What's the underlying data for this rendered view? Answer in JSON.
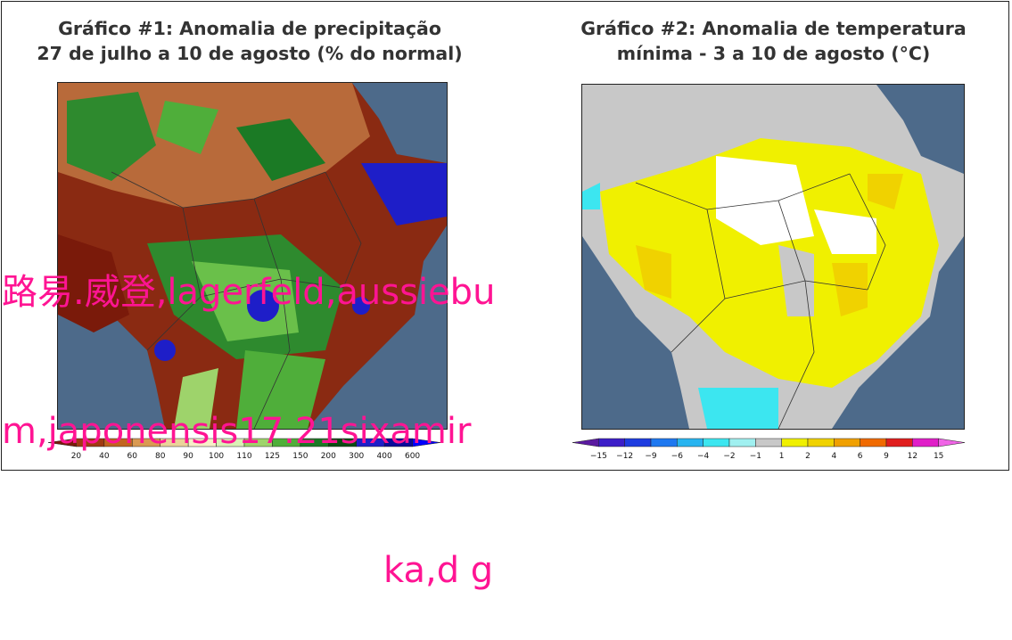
{
  "panels": [
    {
      "title_line1": "Gráfico #1: Anomalia de precipitação",
      "title_line2": "27 de julho a 10 de agosto (% do normal)",
      "colorbar": {
        "ticks": [
          "20",
          "40",
          "60",
          "80",
          "90",
          "100",
          "110",
          "125",
          "150",
          "200",
          "300",
          "400",
          "600"
        ],
        "colors": [
          "#7a1a0a",
          "#a03a12",
          "#c1641f",
          "#d99a52",
          "#ead29a",
          "#f6efc8",
          "#d9f0b6",
          "#9ed36b",
          "#4fae3a",
          "#1b7a25",
          "#0a4d12",
          "#1e1ec8",
          "#0a0a9a",
          "#0000ff"
        ]
      }
    },
    {
      "title_line1": "Gráfico #2: Anomalia de temperatura",
      "title_line2": "mínima - 3 a 10 de agosto (°C)",
      "colorbar": {
        "ticks": [
          "−15",
          "−12",
          "−9",
          "−6",
          "−4",
          "−2",
          "−1",
          "1",
          "2",
          "4",
          "6",
          "9",
          "12",
          "15"
        ],
        "colors": [
          "#5a1aa0",
          "#3c1ec8",
          "#1e3ce0",
          "#1e78f0",
          "#28b4f0",
          "#3ce6f0",
          "#a0f0f0",
          "#c8c8c8",
          "#f0f000",
          "#f0d200",
          "#f0a000",
          "#f06a00",
          "#e01e1e",
          "#e01ec8",
          "#f064e6"
        ]
      }
    }
  ],
  "overlay_text": [
    "路易.威登,lagerfeld,aussiebu",
    "m,japonensis17.21sixamir",
    "ka,d g"
  ]
}
